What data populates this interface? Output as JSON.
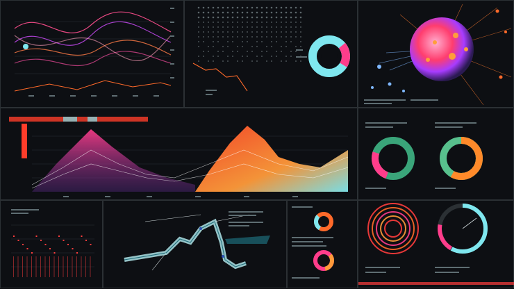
{
  "colors": {
    "background": "#0b0c10",
    "panel_border": "#2b3034",
    "accent_cyan": "#7fe7ef",
    "accent_pink": "#ff3d8b",
    "accent_orange": "#ff6a2a",
    "accent_purple": "#9a5cff",
    "accent_green": "#58c08d"
  },
  "icons": {
    "particle_burst": "sphere-burst-icon",
    "donut": "donut-icon",
    "radial": "radial-ring-icon"
  }
}
